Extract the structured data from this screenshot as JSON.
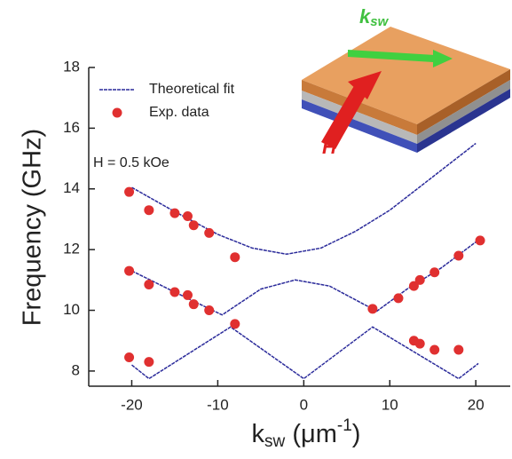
{
  "chart_data": {
    "type": "line-scatter",
    "ylabel": "Frequency (GHz)",
    "xlabel": {
      "base": "k",
      "sub": "sw",
      "unit": " (μm",
      "sup": "-1",
      "close": ")"
    },
    "annotation": "H = 0.5 kOe",
    "inset": {
      "k_label": "k",
      "k_sub": "sw",
      "h_label": "H"
    },
    "xlim": [
      -25,
      24
    ],
    "ylim": [
      7.5,
      18
    ],
    "xticks": [
      -20,
      -10,
      0,
      10,
      20
    ],
    "yticks": [
      8,
      10,
      12,
      14,
      16,
      18
    ],
    "legend": "top-left",
    "series": [
      {
        "name": "Theoretical fit",
        "type": "line",
        "color": "#2a2a9a",
        "x": [
          -20,
          -15,
          -10,
          -6,
          -2,
          2,
          6,
          10,
          15,
          20,
          null,
          -20,
          -15,
          -9.5,
          -5,
          -1,
          3,
          8.5,
          12,
          16,
          20,
          null,
          -20,
          -18,
          -8.5,
          0,
          8,
          18,
          20.3
        ],
        "values": [
          14.05,
          13.25,
          12.5,
          12.05,
          11.85,
          12.05,
          12.6,
          13.3,
          14.4,
          15.5,
          null,
          11.3,
          10.6,
          9.85,
          10.7,
          11.0,
          10.8,
          9.97,
          10.7,
          11.4,
          12.25,
          null,
          8.2,
          7.75,
          9.45,
          7.75,
          9.45,
          7.75,
          8.25
        ]
      },
      {
        "name": "Exp. data",
        "type": "scatter",
        "color": "#e03030",
        "x": [
          -20.3,
          -18,
          -15,
          -13.5,
          -12.8,
          -11,
          -8,
          -20.3,
          -18,
          -15,
          -13.5,
          -12.8,
          -11,
          8,
          11,
          12.8,
          13.5,
          15.2,
          18,
          20.5,
          -20.3,
          -18,
          -8,
          12.8,
          13.5,
          15.2,
          18
        ],
        "values": [
          13.9,
          13.3,
          13.2,
          13.1,
          12.8,
          12.55,
          11.75,
          11.3,
          10.85,
          10.6,
          10.5,
          10.2,
          10.0,
          10.05,
          10.4,
          10.8,
          11.0,
          11.25,
          11.8,
          12.3,
          8.45,
          8.3,
          9.55,
          9.0,
          8.9,
          8.7,
          8.7
        ]
      }
    ]
  }
}
